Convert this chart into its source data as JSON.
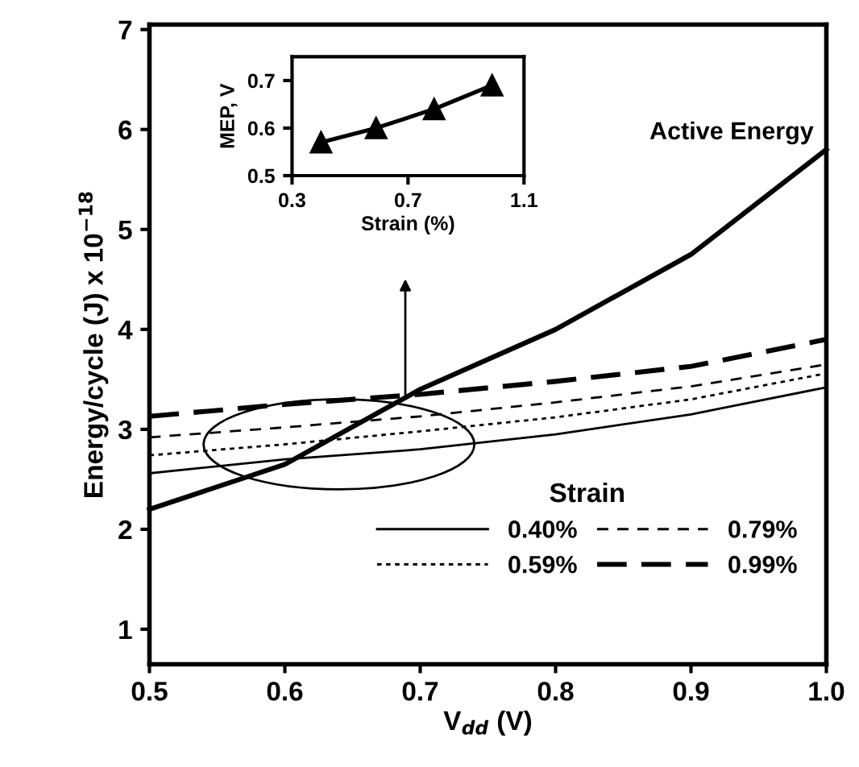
{
  "chart_data": [
    {
      "type": "line",
      "xlabel": "V$_{dd}$ (V)",
      "ylabel": "Energy/cycle (J) x 10$^{−18}$",
      "legend_title": "Strain",
      "legend": "bottom right",
      "grid": false,
      "marker": "none",
      "x": [
        0.5,
        0.6,
        0.7,
        0.8,
        0.9,
        1.0
      ],
      "xlim": [
        0.5,
        1.0
      ],
      "xticks": [
        {
          "value": 0.5,
          "label": "0.5"
        },
        {
          "value": 0.6,
          "label": "0.6"
        },
        {
          "value": 0.7,
          "label": "0.7"
        },
        {
          "value": 0.8,
          "label": "0.8"
        },
        {
          "value": 0.9,
          "label": "0.9"
        },
        {
          "value": 1.0,
          "label": "1.0"
        }
      ],
      "ylim": [
        0.65,
        7.05
      ],
      "yticks": [
        1,
        2,
        3,
        4,
        5,
        6,
        7
      ],
      "series": [
        {
          "name": "Active Energy",
          "color": "#000000",
          "line_style": "solid",
          "values": [
            2.2,
            2.65,
            3.4,
            4.0,
            4.75,
            5.8
          ]
        },
        {
          "name": "0.40%",
          "color": "#000000",
          "line_style": "solid",
          "values": [
            2.56,
            2.7,
            2.8,
            2.95,
            3.15,
            3.42
          ]
        },
        {
          "name": "0.59%",
          "color": "#000000",
          "line_style": "dotted",
          "values": [
            2.74,
            2.85,
            2.98,
            3.12,
            3.3,
            3.56
          ]
        },
        {
          "name": "0.79%",
          "color": "#000000",
          "line_style": "dashed",
          "values": [
            2.92,
            3.02,
            3.13,
            3.27,
            3.43,
            3.65
          ]
        },
        {
          "name": "0.99%",
          "color": "#000000",
          "line_style": "dashed",
          "values": [
            3.13,
            3.25,
            3.35,
            3.48,
            3.63,
            3.9
          ]
        }
      ]
    },
    {
      "type": "line",
      "xlabel": "Strain (%)",
      "ylabel": "MEP, V",
      "grid": false,
      "marker": "triangle",
      "legend": false,
      "x": [
        0.4,
        0.59,
        0.79,
        0.99
      ],
      "xlim": [
        0.3,
        1.1
      ],
      "xticks": [
        0.3,
        0.7,
        1.1
      ],
      "ylim": [
        0.5,
        0.75
      ],
      "yticks": [
        0.5,
        0.6,
        0.7
      ],
      "series": [
        {
          "color": "#000000",
          "line_style": "solid",
          "values": [
            0.57,
            0.6,
            0.64,
            0.69
          ]
        }
      ]
    }
  ]
}
